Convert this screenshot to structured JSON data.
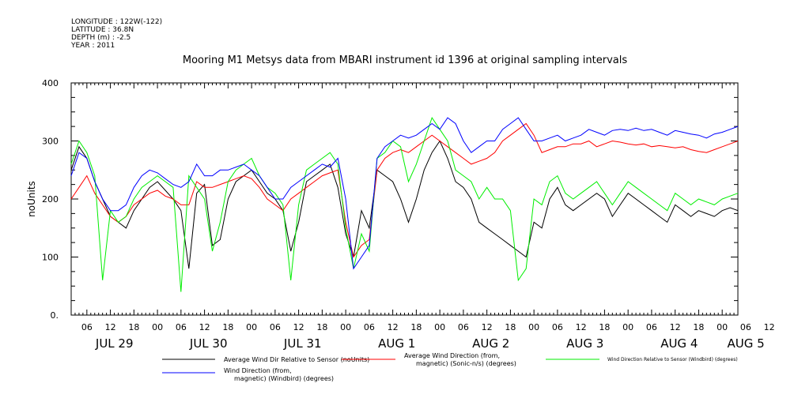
{
  "meta": {
    "longitude": "LONGITUDE : 122W(-122)",
    "latitude": "LATITUDE : 36.8N",
    "depth": "DEPTH (m) : -2.5",
    "year": "YEAR : 2011"
  },
  "chart_data": {
    "type": "line",
    "title": "Mooring M1 Metsys data from MBARI instrument id 1396 at original sampling intervals",
    "ylabel": "noUnits",
    "ylim": [
      0,
      400
    ],
    "yticks": [
      0,
      100,
      200,
      300,
      400
    ],
    "ytick_labels": [
      "0.",
      "100",
      "200",
      "300",
      "400"
    ],
    "x_range_hours": [
      0,
      170
    ],
    "x_start": "JUL 29 02:00",
    "hour_tick_labels": [
      "06",
      "12",
      "18",
      "00",
      "06",
      "12",
      "18",
      "00",
      "06",
      "12",
      "18",
      "00",
      "06",
      "12",
      "18",
      "00",
      "06",
      "12",
      "18",
      "00",
      "06",
      "12",
      "18",
      "00",
      "06",
      "12",
      "18",
      "00",
      "06",
      "12"
    ],
    "date_labels": [
      {
        "label": "JUL 29",
        "hour": 7
      },
      {
        "label": "JUL 30",
        "hour": 31
      },
      {
        "label": "JUL 31",
        "hour": 55
      },
      {
        "label": "AUG  1",
        "hour": 79
      },
      {
        "label": "AUG  2",
        "hour": 103
      },
      {
        "label": "AUG  3",
        "hour": 127
      },
      {
        "label": "AUG  4",
        "hour": 151
      },
      {
        "label": "AUG  5",
        "hour": 168
      }
    ],
    "series": [
      {
        "name": "Average Wind Dir Relative to Sensor (noUnits)",
        "color": "#000000",
        "hours": [
          0,
          2,
          4,
          6,
          8,
          10,
          12,
          14,
          16,
          18,
          20,
          22,
          24,
          26,
          28,
          30,
          32,
          34,
          36,
          38,
          40,
          42,
          44,
          46,
          48,
          50,
          52,
          54,
          56,
          58,
          60,
          62,
          64,
          66,
          68,
          70,
          72,
          74,
          76,
          78,
          80,
          82,
          84,
          86,
          88,
          90,
          92,
          94,
          96,
          98,
          100,
          102,
          104,
          106,
          108,
          110,
          112,
          114,
          116,
          118,
          120,
          122,
          124,
          126,
          128,
          130,
          132,
          134,
          136,
          138,
          140,
          142,
          144,
          146,
          148,
          150,
          152,
          154,
          156,
          158,
          160,
          162,
          164,
          166,
          168,
          170
        ],
        "values": [
          250,
          290,
          270,
          230,
          200,
          170,
          160,
          150,
          180,
          200,
          220,
          230,
          215,
          200,
          180,
          80,
          210,
          225,
          120,
          130,
          200,
          230,
          240,
          250,
          230,
          210,
          200,
          180,
          110,
          160,
          230,
          240,
          250,
          260,
          220,
          140,
          100,
          180,
          150,
          250,
          240,
          230,
          200,
          160,
          200,
          250,
          280,
          300,
          270,
          230,
          220,
          200,
          160,
          150,
          140,
          130,
          120,
          110,
          100,
          160,
          150,
          200,
          220,
          190,
          180,
          190,
          200,
          210,
          200,
          170,
          190,
          210,
          200,
          190,
          180,
          170,
          160,
          190,
          180,
          170,
          180,
          175,
          170,
          180,
          185,
          180
        ]
      },
      {
        "name": "Average Wind Direction (from, magnetic) (Sonic-n/s) (degrees)",
        "color": "#ff0000",
        "hours": [
          0,
          2,
          4,
          6,
          8,
          10,
          12,
          14,
          16,
          18,
          20,
          22,
          24,
          26,
          28,
          30,
          32,
          34,
          36,
          38,
          40,
          42,
          44,
          46,
          48,
          50,
          52,
          54,
          56,
          58,
          60,
          62,
          64,
          66,
          68,
          70,
          72,
          74,
          76,
          78,
          80,
          82,
          84,
          86,
          88,
          90,
          92,
          94,
          96,
          98,
          100,
          102,
          104,
          106,
          108,
          110,
          112,
          114,
          116,
          118,
          120,
          122,
          124,
          126,
          128,
          130,
          132,
          134,
          136,
          138,
          140,
          142,
          144,
          146,
          148,
          150,
          152,
          154,
          156,
          158,
          160,
          162,
          164,
          166,
          168,
          170
        ],
        "values": [
          200,
          220,
          240,
          210,
          190,
          170,
          160,
          170,
          190,
          200,
          210,
          215,
          205,
          200,
          190,
          190,
          230,
          220,
          220,
          225,
          230,
          235,
          240,
          235,
          220,
          200,
          190,
          180,
          200,
          210,
          220,
          230,
          240,
          245,
          250,
          160,
          100,
          120,
          130,
          250,
          270,
          280,
          285,
          280,
          290,
          300,
          310,
          300,
          290,
          280,
          270,
          260,
          265,
          270,
          280,
          300,
          310,
          320,
          330,
          310,
          280,
          285,
          290,
          290,
          295,
          295,
          300,
          290,
          295,
          300,
          298,
          295,
          293,
          295,
          290,
          292,
          290,
          288,
          290,
          285,
          282,
          280,
          285,
          290,
          295,
          300
        ]
      },
      {
        "name": "Wind Direction Relative to Sensor (Windbird) (degrees)",
        "color": "#00ee00",
        "hours": [
          0,
          2,
          4,
          6,
          8,
          10,
          12,
          14,
          16,
          18,
          20,
          22,
          24,
          26,
          28,
          30,
          32,
          34,
          36,
          38,
          40,
          42,
          44,
          46,
          48,
          50,
          52,
          54,
          56,
          58,
          60,
          62,
          64,
          66,
          68,
          70,
          72,
          74,
          76,
          78,
          80,
          82,
          84,
          86,
          88,
          90,
          92,
          94,
          96,
          98,
          100,
          102,
          104,
          106,
          108,
          110,
          112,
          114,
          116,
          118,
          120,
          122,
          124,
          126,
          128,
          130,
          132,
          134,
          136,
          138,
          140,
          142,
          144,
          146,
          148,
          150,
          152,
          154,
          156,
          158,
          160,
          162,
          164,
          166,
          168,
          170
        ],
        "values": [
          260,
          300,
          280,
          240,
          60,
          180,
          160,
          170,
          200,
          220,
          230,
          240,
          230,
          220,
          40,
          240,
          220,
          200,
          110,
          160,
          230,
          250,
          260,
          270,
          240,
          220,
          210,
          190,
          60,
          190,
          250,
          260,
          270,
          280,
          260,
          150,
          80,
          140,
          110,
          270,
          280,
          300,
          290,
          230,
          260,
          300,
          340,
          320,
          300,
          250,
          240,
          230,
          200,
          220,
          200,
          200,
          180,
          60,
          80,
          200,
          190,
          230,
          240,
          210,
          200,
          210,
          220,
          230,
          210,
          190,
          210,
          230,
          220,
          210,
          200,
          190,
          180,
          210,
          200,
          190,
          200,
          195,
          190,
          200,
          205,
          210
        ]
      },
      {
        "name": "Wind Direction (from, magnetic) (Windbird) (degrees)",
        "color": "#0000ff",
        "hours": [
          0,
          2,
          4,
          6,
          8,
          10,
          12,
          14,
          16,
          18,
          20,
          22,
          24,
          26,
          28,
          30,
          32,
          34,
          36,
          38,
          40,
          42,
          44,
          46,
          48,
          50,
          52,
          54,
          56,
          58,
          60,
          62,
          64,
          66,
          68,
          70,
          72,
          74,
          76,
          78,
          80,
          82,
          84,
          86,
          88,
          90,
          92,
          94,
          96,
          98,
          100,
          102,
          104,
          106,
          108,
          110,
          112,
          114,
          116,
          118,
          120,
          122,
          124,
          126,
          128,
          130,
          132,
          134,
          136,
          138,
          140,
          142,
          144,
          146,
          148,
          150,
          152,
          154,
          156,
          158,
          160,
          162,
          164,
          166,
          168,
          170
        ],
        "values": [
          240,
          280,
          270,
          230,
          200,
          180,
          180,
          190,
          220,
          240,
          250,
          245,
          235,
          225,
          220,
          230,
          260,
          240,
          240,
          250,
          250,
          255,
          260,
          250,
          240,
          220,
          200,
          200,
          220,
          230,
          240,
          250,
          260,
          255,
          270,
          200,
          80,
          100,
          120,
          270,
          290,
          300,
          310,
          305,
          310,
          320,
          330,
          320,
          340,
          330,
          300,
          280,
          290,
          300,
          300,
          320,
          330,
          340,
          320,
          300,
          300,
          305,
          310,
          300,
          305,
          310,
          320,
          315,
          310,
          318,
          320,
          318,
          322,
          318,
          320,
          315,
          310,
          318,
          315,
          312,
          310,
          305,
          312,
          315,
          320,
          325
        ]
      }
    ]
  },
  "legend": [
    {
      "line1": "Average Wind Dir Relative to Sensor (noUnits)",
      "line2": ""
    },
    {
      "line1": "Average Wind Direction (from,",
      "line2": "magnetic) (Sonic-n/s) (degrees)"
    },
    {
      "line1": "Wind Direction Relative to Sensor (Windbird) (degrees)",
      "line2": ""
    },
    {
      "line1": "Wind Direction (from,",
      "line2": "magnetic) (Windbird) (degrees)"
    }
  ]
}
